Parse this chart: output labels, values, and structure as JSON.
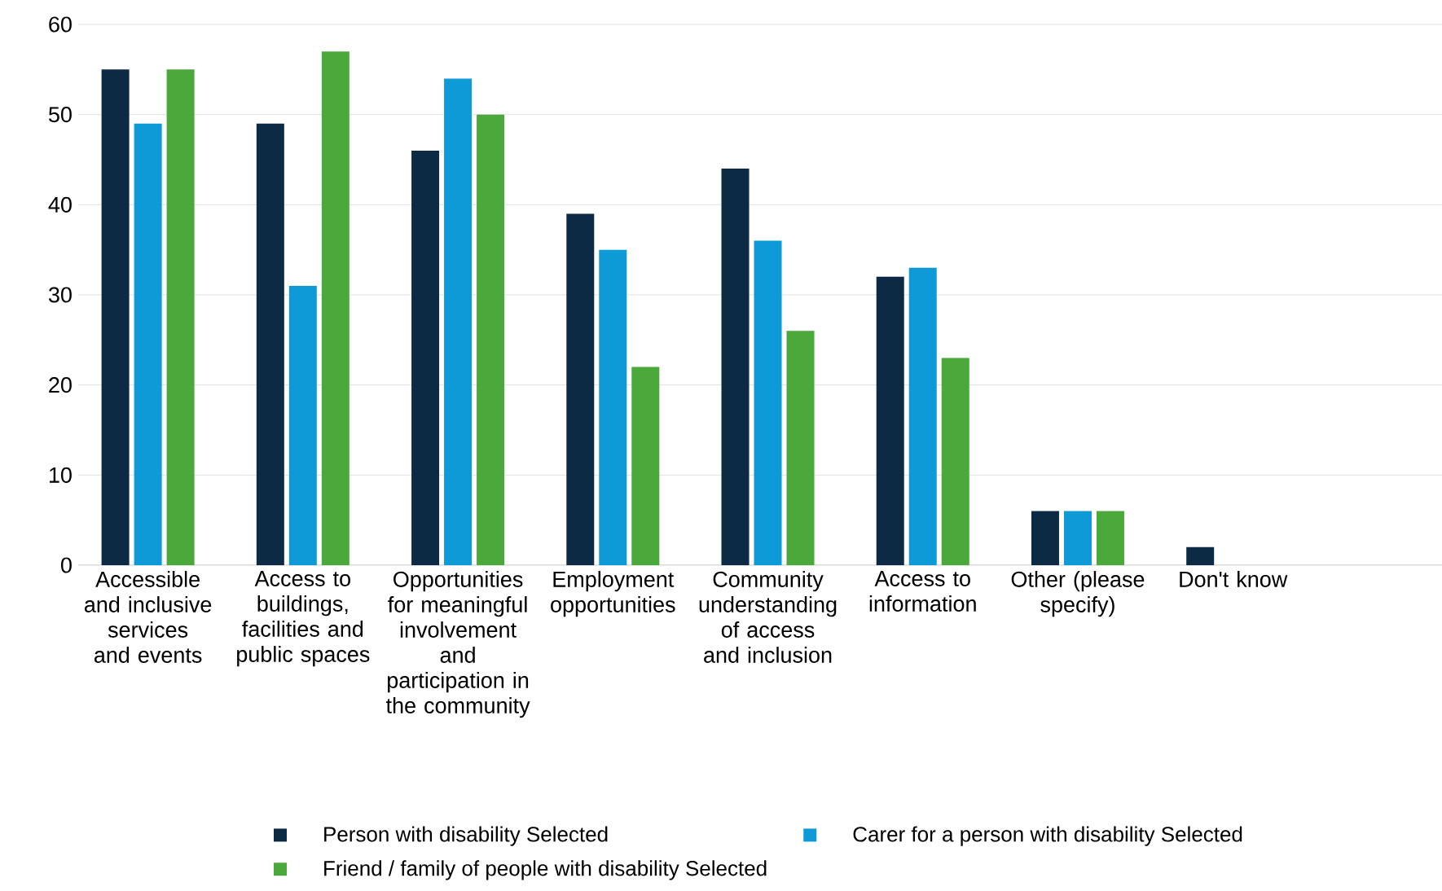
{
  "chart_data": {
    "type": "bar",
    "categories": [
      "Accessible and inclusive services and events",
      "Access to buildings, facilities and public spaces",
      "Opportunities for meaningful involvement and participation in the community",
      "Employment opportunities",
      "Community understanding of access and inclusion",
      "Access to information",
      "Other (please specify)",
      "Don't know"
    ],
    "series": [
      {
        "name": "Person with disability  Selected",
        "color": "#0c2a44",
        "values": [
          55,
          49,
          46,
          39,
          44,
          32,
          6,
          2
        ]
      },
      {
        "name": "Carer for a person with disability  Selected",
        "color": "#0e9ad7",
        "values": [
          49,
          31,
          54,
          35,
          36,
          33,
          6,
          0
        ]
      },
      {
        "name": "Friend / family of people with disability  Selected",
        "color": "#4ba83a",
        "values": [
          55,
          57,
          50,
          22,
          26,
          23,
          6,
          0
        ]
      }
    ],
    "ylim": [
      0,
      60
    ],
    "yticks": [
      0,
      10,
      20,
      30,
      40,
      50,
      60
    ],
    "grid": "y",
    "legend": "bottom"
  }
}
